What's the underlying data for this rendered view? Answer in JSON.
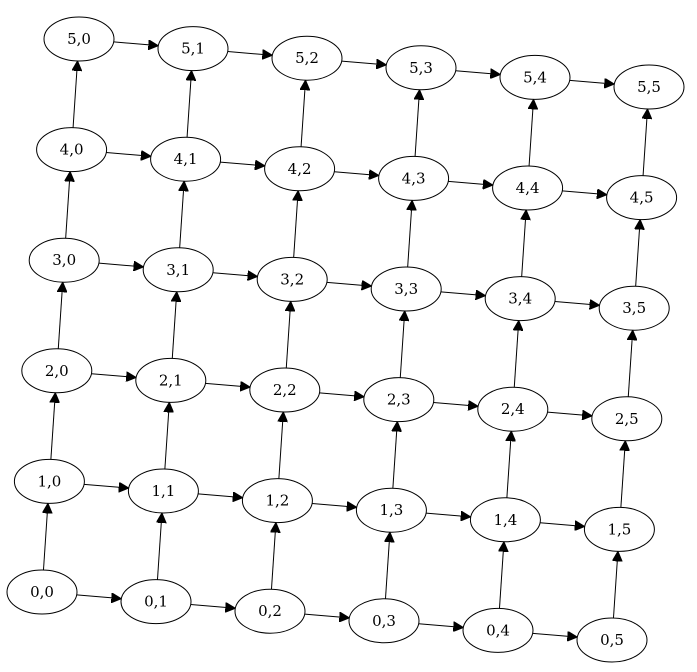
{
  "graph": {
    "nodes": [
      {
        "id": "0,0",
        "label": "0,0"
      },
      {
        "id": "0,1",
        "label": "0,1"
      },
      {
        "id": "0,2",
        "label": "0,2"
      },
      {
        "id": "0,3",
        "label": "0,3"
      },
      {
        "id": "0,4",
        "label": "0,4"
      },
      {
        "id": "0,5",
        "label": "0,5"
      },
      {
        "id": "1,0",
        "label": "1,0"
      },
      {
        "id": "1,1",
        "label": "1,1"
      },
      {
        "id": "1,2",
        "label": "1,2"
      },
      {
        "id": "1,3",
        "label": "1,3"
      },
      {
        "id": "1,4",
        "label": "1,4"
      },
      {
        "id": "1,5",
        "label": "1,5"
      },
      {
        "id": "2,0",
        "label": "2,0"
      },
      {
        "id": "2,1",
        "label": "2,1"
      },
      {
        "id": "2,2",
        "label": "2,2"
      },
      {
        "id": "2,3",
        "label": "2,3"
      },
      {
        "id": "2,4",
        "label": "2,4"
      },
      {
        "id": "2,5",
        "label": "2,5"
      },
      {
        "id": "3,0",
        "label": "3,0"
      },
      {
        "id": "3,1",
        "label": "3,1"
      },
      {
        "id": "3,2",
        "label": "3,2"
      },
      {
        "id": "3,3",
        "label": "3,3"
      },
      {
        "id": "3,4",
        "label": "3,4"
      },
      {
        "id": "3,5",
        "label": "3,5"
      },
      {
        "id": "4,0",
        "label": "4,0"
      },
      {
        "id": "4,1",
        "label": "4,1"
      },
      {
        "id": "4,2",
        "label": "4,2"
      },
      {
        "id": "4,3",
        "label": "4,3"
      },
      {
        "id": "4,4",
        "label": "4,4"
      },
      {
        "id": "4,5",
        "label": "4,5"
      },
      {
        "id": "5,0",
        "label": "5,0"
      },
      {
        "id": "5,1",
        "label": "5,1"
      },
      {
        "id": "5,2",
        "label": "5,2"
      },
      {
        "id": "5,3",
        "label": "5,3"
      },
      {
        "id": "5,4",
        "label": "5,4"
      },
      {
        "id": "5,5",
        "label": "5,5"
      }
    ],
    "edges": [
      {
        "from": "0,0",
        "to": "0,1"
      },
      {
        "from": "0,1",
        "to": "0,2"
      },
      {
        "from": "0,2",
        "to": "0,3"
      },
      {
        "from": "0,3",
        "to": "0,4"
      },
      {
        "from": "0,4",
        "to": "0,5"
      },
      {
        "from": "1,0",
        "to": "1,1"
      },
      {
        "from": "1,1",
        "to": "1,2"
      },
      {
        "from": "1,2",
        "to": "1,3"
      },
      {
        "from": "1,3",
        "to": "1,4"
      },
      {
        "from": "1,4",
        "to": "1,5"
      },
      {
        "from": "2,0",
        "to": "2,1"
      },
      {
        "from": "2,1",
        "to": "2,2"
      },
      {
        "from": "2,2",
        "to": "2,3"
      },
      {
        "from": "2,3",
        "to": "2,4"
      },
      {
        "from": "2,4",
        "to": "2,5"
      },
      {
        "from": "3,0",
        "to": "3,1"
      },
      {
        "from": "3,1",
        "to": "3,2"
      },
      {
        "from": "3,2",
        "to": "3,3"
      },
      {
        "from": "3,3",
        "to": "3,4"
      },
      {
        "from": "3,4",
        "to": "3,5"
      },
      {
        "from": "4,0",
        "to": "4,1"
      },
      {
        "from": "4,1",
        "to": "4,2"
      },
      {
        "from": "4,2",
        "to": "4,3"
      },
      {
        "from": "4,3",
        "to": "4,4"
      },
      {
        "from": "4,4",
        "to": "4,5"
      },
      {
        "from": "5,0",
        "to": "5,1"
      },
      {
        "from": "5,1",
        "to": "5,2"
      },
      {
        "from": "5,2",
        "to": "5,3"
      },
      {
        "from": "5,3",
        "to": "5,4"
      },
      {
        "from": "5,4",
        "to": "5,5"
      },
      {
        "from": "0,0",
        "to": "1,0"
      },
      {
        "from": "1,0",
        "to": "2,0"
      },
      {
        "from": "2,0",
        "to": "3,0"
      },
      {
        "from": "3,0",
        "to": "4,0"
      },
      {
        "from": "4,0",
        "to": "5,0"
      },
      {
        "from": "0,1",
        "to": "1,1"
      },
      {
        "from": "1,1",
        "to": "2,1"
      },
      {
        "from": "2,1",
        "to": "3,1"
      },
      {
        "from": "3,1",
        "to": "4,1"
      },
      {
        "from": "4,1",
        "to": "5,1"
      },
      {
        "from": "0,2",
        "to": "1,2"
      },
      {
        "from": "1,2",
        "to": "2,2"
      },
      {
        "from": "2,2",
        "to": "3,2"
      },
      {
        "from": "3,2",
        "to": "4,2"
      },
      {
        "from": "4,2",
        "to": "5,2"
      },
      {
        "from": "0,3",
        "to": "1,3"
      },
      {
        "from": "1,3",
        "to": "2,3"
      },
      {
        "from": "2,3",
        "to": "3,3"
      },
      {
        "from": "3,3",
        "to": "4,3"
      },
      {
        "from": "4,3",
        "to": "5,3"
      },
      {
        "from": "0,4",
        "to": "1,4"
      },
      {
        "from": "1,4",
        "to": "2,4"
      },
      {
        "from": "2,4",
        "to": "3,4"
      },
      {
        "from": "3,4",
        "to": "4,4"
      },
      {
        "from": "4,4",
        "to": "5,4"
      },
      {
        "from": "0,5",
        "to": "1,5"
      },
      {
        "from": "1,5",
        "to": "2,5"
      },
      {
        "from": "2,5",
        "to": "3,5"
      },
      {
        "from": "3,5",
        "to": "4,5"
      },
      {
        "from": "4,5",
        "to": "5,5"
      }
    ],
    "colors": {
      "node_fill": "#ffffff",
      "node_stroke": "#000000",
      "edge": "#000000",
      "background": "#ffffff"
    }
  }
}
